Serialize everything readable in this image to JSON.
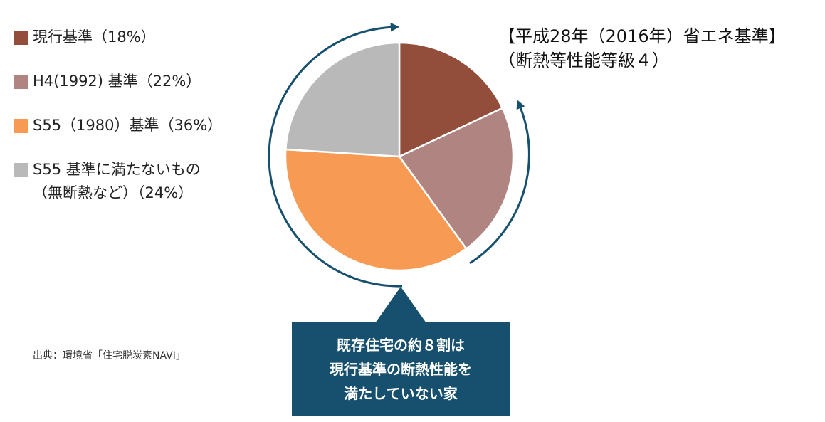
{
  "colors": {
    "current": "#934e3b",
    "h4": "#b08581",
    "s55": "#f79a53",
    "below_s55": "#b9b9b9",
    "navy": "#17506f"
  },
  "legend": {
    "items": [
      {
        "lines": [
          "現行基準（18%）"
        ],
        "color": "#934e3b"
      },
      {
        "lines": [
          "H4(1992) 基準（22%）"
        ],
        "color": "#b08581"
      },
      {
        "lines": [
          "S55（1980）基準（36%）"
        ],
        "color": "#f79a53"
      },
      {
        "lines": [
          "S55 基準に満たないもの",
          "（無断熱など）（24%）"
        ],
        "color": "#b9b9b9"
      }
    ]
  },
  "title": {
    "line1": "【平成28年（2016年）省エネ基準】",
    "line2": "（断熱等性能等級４）"
  },
  "source": "出典：環境省「住宅脱炭素NAVI」",
  "callout": {
    "line1": "既存住宅の約８割は",
    "line2": "現行基準の断熱性能を",
    "line3": "満たしていない家"
  },
  "chart_data": {
    "type": "pie",
    "categories": [
      "現行基準",
      "H4(1992) 基準",
      "S55（1980）基準",
      "S55 基準に満たないもの（無断熱など）"
    ],
    "values": [
      18,
      22,
      36,
      24
    ],
    "unit": "%",
    "colors": [
      "#934e3b",
      "#b08581",
      "#f79a53",
      "#b9b9b9"
    ],
    "start": "12 o'clock",
    "direction": "clockwise",
    "legend": "left"
  }
}
